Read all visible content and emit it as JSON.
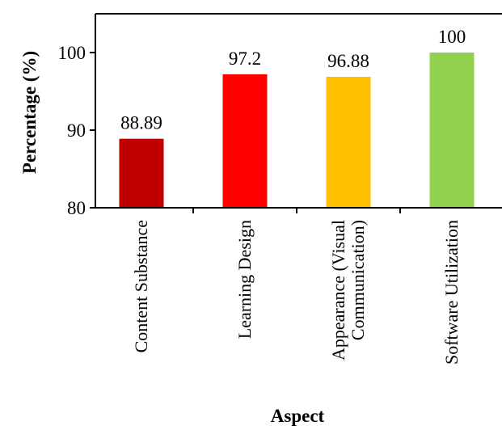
{
  "chart_data": {
    "type": "bar",
    "categories": [
      [
        "Content Substance"
      ],
      [
        "Learning Design"
      ],
      [
        "Appearance (Visual",
        "Communication)"
      ],
      [
        "Software Utilization"
      ]
    ],
    "values": [
      88.89,
      97.2,
      96.88,
      100
    ],
    "data_labels": [
      "88.89",
      "97.2",
      "96.88",
      "100"
    ],
    "colors": [
      "#c00000",
      "#ff0000",
      "#ffc000",
      "#92d050"
    ],
    "xlabel": "Aspect",
    "ylabel": "Percentage (%)",
    "ylim": [
      80,
      105
    ],
    "yticks": [
      80,
      90,
      100
    ],
    "ytick_labels": [
      "80",
      "90",
      "100"
    ],
    "grid": false,
    "legend": "none"
  }
}
